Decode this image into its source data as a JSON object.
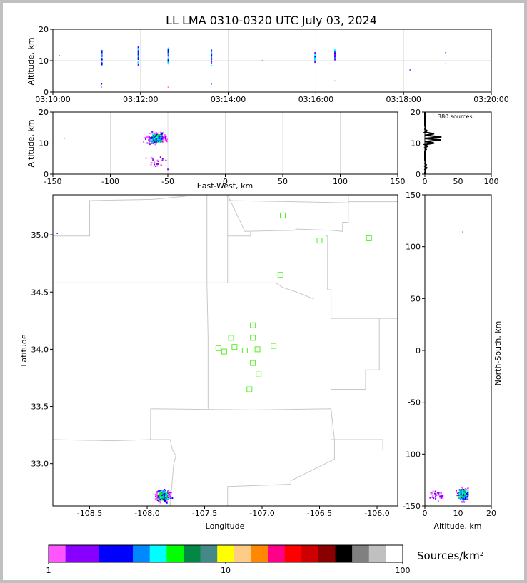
{
  "title": "LL LMA 0310-0320 UTC July 03, 2024",
  "chart_data": [
    {
      "id": "time_altitude",
      "type": "scatter",
      "ylabel": "Altitude, km",
      "xlim": [
        "03:10:00",
        "03:20:00"
      ],
      "ylim": [
        0,
        20
      ],
      "x_ticks": [
        "03:10:00",
        "03:12:00",
        "03:14:00",
        "03:16:00",
        "03:18:00",
        "03:20:00"
      ],
      "y_ticks": [
        0,
        10,
        20
      ],
      "grid": true,
      "bursts": [
        {
          "time": "03:11:07",
          "alt_range": [
            8.5,
            13.5
          ]
        },
        {
          "time": "03:11:57",
          "alt_range": [
            8.5,
            14.5
          ]
        },
        {
          "time": "03:12:38",
          "alt_range": [
            9.0,
            14.0
          ]
        },
        {
          "time": "03:13:37",
          "alt_range": [
            8.0,
            13.5
          ]
        },
        {
          "time": "03:15:59",
          "alt_range": [
            9.5,
            12.5
          ]
        },
        {
          "time": "03:16:26",
          "alt_range": [
            9.5,
            13.5
          ]
        }
      ],
      "isolated": [
        {
          "time": "03:11:07",
          "alt": 2.5
        },
        {
          "time": "03:11:07",
          "alt": 1.5
        },
        {
          "time": "03:12:38",
          "alt": 1.5
        },
        {
          "time": "03:13:37",
          "alt": 2.5
        },
        {
          "time": "03:14:47",
          "alt": 10.0
        },
        {
          "time": "03:16:26",
          "alt": 3.5
        },
        {
          "time": "03:18:09",
          "alt": 7.0
        },
        {
          "time": "03:18:58",
          "alt": 9.0
        },
        {
          "time": "03:18:58",
          "alt": 12.5
        },
        {
          "time": "03:10:09",
          "alt": 11.5
        }
      ]
    },
    {
      "id": "ew_altitude",
      "type": "scatter",
      "xlabel": "East-West, km",
      "ylabel": "Altitude, km",
      "xlim": [
        -150,
        150
      ],
      "ylim": [
        0,
        20
      ],
      "x_ticks": [
        -150,
        -100,
        -50,
        0,
        50,
        100,
        150
      ],
      "y_ticks": [
        0,
        10,
        20
      ],
      "grid": true,
      "cluster": {
        "x_center": -60,
        "x_spread": 8,
        "alt_center": 11.5,
        "alt_spread": 2
      },
      "outliers": [
        {
          "x": -140,
          "alt": 11.5
        }
      ]
    },
    {
      "id": "altitude_histogram",
      "type": "line",
      "annotation": "380 sources",
      "xlim": [
        0,
        100
      ],
      "ylim": [
        0,
        20
      ],
      "x_ticks": [
        0,
        50,
        100
      ],
      "y_ticks": [
        0,
        10,
        20
      ],
      "profile": [
        {
          "alt": 1,
          "count": 1
        },
        {
          "alt": 2,
          "count": 3
        },
        {
          "alt": 3,
          "count": 2
        },
        {
          "alt": 4,
          "count": 1
        },
        {
          "alt": 8,
          "count": 2
        },
        {
          "alt": 9,
          "count": 4
        },
        {
          "alt": 10,
          "count": 14
        },
        {
          "alt": 11,
          "count": 24
        },
        {
          "alt": 12,
          "count": 25
        },
        {
          "alt": 13,
          "count": 14
        },
        {
          "alt": 14,
          "count": 3
        },
        {
          "alt": 15,
          "count": 1
        }
      ]
    },
    {
      "id": "plan_view",
      "type": "scatter",
      "xlabel": "Longitude",
      "ylabel": "Latitude",
      "xlim": [
        -108.82,
        -105.82
      ],
      "ylim": [
        32.63,
        35.35
      ],
      "x_ticks": [
        -108.5,
        -108.0,
        -107.5,
        -107.0,
        -106.5,
        -106.0
      ],
      "y_ticks": [
        33.0,
        33.5,
        34.0,
        34.5,
        35.0
      ],
      "stations": [
        {
          "lon": -106.82,
          "lat": 35.17
        },
        {
          "lon": -106.5,
          "lat": 34.95
        },
        {
          "lon": -106.07,
          "lat": 34.97
        },
        {
          "lon": -106.84,
          "lat": 34.65
        },
        {
          "lon": -107.08,
          "lat": 34.21
        },
        {
          "lon": -107.27,
          "lat": 34.1
        },
        {
          "lon": -107.08,
          "lat": 34.1
        },
        {
          "lon": -107.38,
          "lat": 34.01
        },
        {
          "lon": -107.33,
          "lat": 33.98
        },
        {
          "lon": -107.24,
          "lat": 34.02
        },
        {
          "lon": -107.15,
          "lat": 33.99
        },
        {
          "lon": -107.04,
          "lat": 34.0
        },
        {
          "lon": -106.9,
          "lat": 34.03
        },
        {
          "lon": -107.08,
          "lat": 33.88
        },
        {
          "lon": -107.03,
          "lat": 33.78
        },
        {
          "lon": -107.11,
          "lat": 33.65
        }
      ],
      "cluster": {
        "lon_center": -107.86,
        "lon_spread": 0.07,
        "lat_center": 32.72,
        "lat_spread": 0.05
      },
      "outliers": [
        {
          "lon": -108.78,
          "lat": 35.01
        }
      ]
    },
    {
      "id": "altitude_ns",
      "type": "scatter",
      "xlabel": "Altitude, km",
      "ylabel": "North-South, km",
      "xlim": [
        0,
        20
      ],
      "ylim": [
        -150,
        150
      ],
      "x_ticks": [
        0,
        10,
        20
      ],
      "y_ticks": [
        -150,
        -100,
        -50,
        0,
        50,
        100,
        150
      ],
      "cluster": {
        "alt_center": 11.5,
        "alt_spread": 2,
        "ns_center": -139,
        "ns_spread": 6
      },
      "outliers": [
        {
          "alt": 11.5,
          "ns": 114
        }
      ]
    }
  ],
  "colorbar": {
    "label": "Sources/km²",
    "scale": "log",
    "range": [
      1,
      100
    ],
    "tick_labels": [
      "1",
      "10",
      "100"
    ],
    "colors": [
      "#ff55ff",
      "#8800ff",
      "#8800ff",
      "#0000ff",
      "#0000ff",
      "#0088ff",
      "#00ffff",
      "#00ff00",
      "#008844",
      "#448888",
      "#ffff00",
      "#ffcc88",
      "#ff8800",
      "#ff0088",
      "#ff0000",
      "#cc0000",
      "#880000",
      "#000000",
      "#808080",
      "#c0c0c0",
      "#ffffff"
    ]
  }
}
